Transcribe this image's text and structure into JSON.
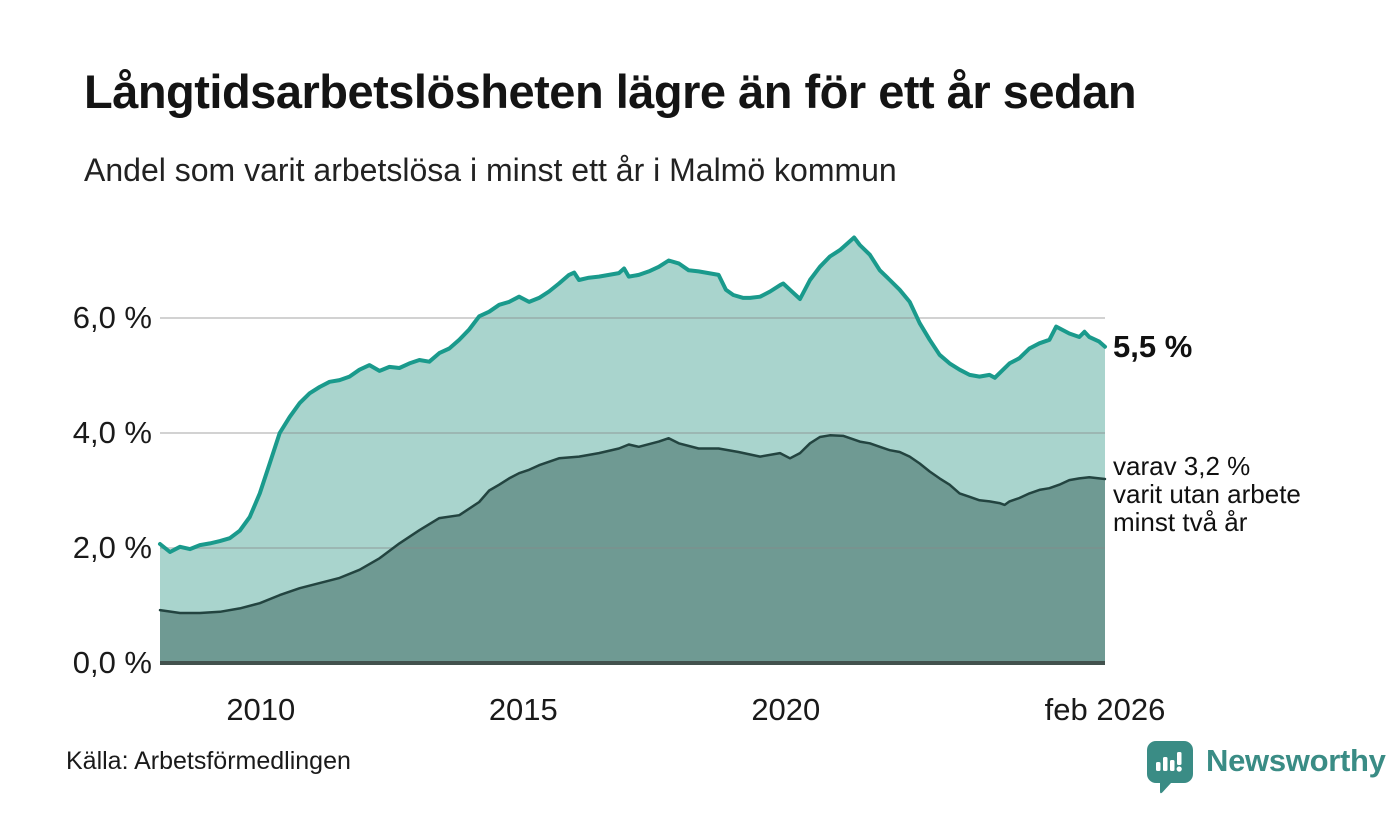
{
  "header": {
    "title": "Långtidsarbetslösheten lägre än för ett år sedan",
    "subtitle": "Andel som varit arbetslösa i minst ett år i Malmö kommun"
  },
  "chart_data": {
    "type": "area",
    "title": "Långtidsarbetslösheten lägre än för ett år sedan",
    "subtitle": "Andel som varit arbetslösa i minst ett år i Malmö kommun",
    "xlabel": "",
    "ylabel": "",
    "x_unit": "year (decimal, feb 2008 – feb 2026)",
    "y_unit": "percent",
    "x_range": [
      2008.08,
      2026.08
    ],
    "y_range": [
      0,
      7.53
    ],
    "grid": true,
    "legend_position": "none",
    "y_ticks": [
      {
        "label": "0,0 %",
        "value": 0
      },
      {
        "label": "2,0 %",
        "value": 2
      },
      {
        "label": "4,0 %",
        "value": 4
      },
      {
        "label": "6,0 %",
        "value": 6
      }
    ],
    "x_ticks": [
      {
        "label": "2010",
        "value": 2010
      },
      {
        "label": "2015",
        "value": 2015
      },
      {
        "label": "2020",
        "value": 2020
      },
      {
        "label": "feb 2026",
        "value": 2026.08
      }
    ],
    "series": [
      {
        "id": "unemployed-at-least-one-year",
        "latest_label": "5,5 %",
        "latest_value": 5.5,
        "line_color": "#1a9a8c",
        "fill_color": "#a9d4cd",
        "line_width": 4,
        "points": [
          [
            2008.08,
            2.07
          ],
          [
            2008.27,
            1.93
          ],
          [
            2008.46,
            2.02
          ],
          [
            2008.65,
            1.98
          ],
          [
            2008.84,
            2.05
          ],
          [
            2009.03,
            2.08
          ],
          [
            2009.22,
            2.12
          ],
          [
            2009.41,
            2.17
          ],
          [
            2009.6,
            2.3
          ],
          [
            2009.79,
            2.54
          ],
          [
            2009.98,
            2.95
          ],
          [
            2010.17,
            3.47
          ],
          [
            2010.36,
            4.0
          ],
          [
            2010.55,
            4.28
          ],
          [
            2010.74,
            4.52
          ],
          [
            2010.93,
            4.69
          ],
          [
            2011.12,
            4.8
          ],
          [
            2011.31,
            4.89
          ],
          [
            2011.5,
            4.92
          ],
          [
            2011.69,
            4.98
          ],
          [
            2011.88,
            5.1
          ],
          [
            2012.07,
            5.18
          ],
          [
            2012.26,
            5.08
          ],
          [
            2012.45,
            5.15
          ],
          [
            2012.64,
            5.13
          ],
          [
            2012.83,
            5.21
          ],
          [
            2013.02,
            5.27
          ],
          [
            2013.21,
            5.24
          ],
          [
            2013.4,
            5.39
          ],
          [
            2013.59,
            5.47
          ],
          [
            2013.78,
            5.62
          ],
          [
            2013.97,
            5.8
          ],
          [
            2014.16,
            6.03
          ],
          [
            2014.35,
            6.11
          ],
          [
            2014.54,
            6.23
          ],
          [
            2014.73,
            6.28
          ],
          [
            2014.92,
            6.37
          ],
          [
            2015.11,
            6.28
          ],
          [
            2015.3,
            6.35
          ],
          [
            2015.49,
            6.46
          ],
          [
            2015.68,
            6.6
          ],
          [
            2015.87,
            6.75
          ],
          [
            2015.97,
            6.79
          ],
          [
            2016.06,
            6.66
          ],
          [
            2016.25,
            6.7
          ],
          [
            2016.44,
            6.72
          ],
          [
            2016.63,
            6.75
          ],
          [
            2016.82,
            6.78
          ],
          [
            2016.92,
            6.86
          ],
          [
            2017.01,
            6.72
          ],
          [
            2017.2,
            6.75
          ],
          [
            2017.39,
            6.81
          ],
          [
            2017.58,
            6.89
          ],
          [
            2017.77,
            7.0
          ],
          [
            2017.96,
            6.95
          ],
          [
            2018.15,
            6.83
          ],
          [
            2018.34,
            6.81
          ],
          [
            2018.53,
            6.78
          ],
          [
            2018.72,
            6.75
          ],
          [
            2018.86,
            6.49
          ],
          [
            2019.0,
            6.4
          ],
          [
            2019.19,
            6.35
          ],
          [
            2019.32,
            6.35
          ],
          [
            2019.51,
            6.37
          ],
          [
            2019.7,
            6.46
          ],
          [
            2019.89,
            6.57
          ],
          [
            2019.95,
            6.6
          ],
          [
            2020.08,
            6.49
          ],
          [
            2020.27,
            6.33
          ],
          [
            2020.46,
            6.66
          ],
          [
            2020.65,
            6.89
          ],
          [
            2020.84,
            7.07
          ],
          [
            2021.03,
            7.18
          ],
          [
            2021.3,
            7.4
          ],
          [
            2021.41,
            7.27
          ],
          [
            2021.6,
            7.1
          ],
          [
            2021.79,
            6.83
          ],
          [
            2021.98,
            6.66
          ],
          [
            2022.17,
            6.49
          ],
          [
            2022.36,
            6.28
          ],
          [
            2022.55,
            5.91
          ],
          [
            2022.74,
            5.62
          ],
          [
            2022.93,
            5.36
          ],
          [
            2023.12,
            5.21
          ],
          [
            2023.31,
            5.1
          ],
          [
            2023.5,
            5.01
          ],
          [
            2023.69,
            4.98
          ],
          [
            2023.88,
            5.01
          ],
          [
            2023.98,
            4.96
          ],
          [
            2024.07,
            5.04
          ],
          [
            2024.26,
            5.21
          ],
          [
            2024.45,
            5.3
          ],
          [
            2024.64,
            5.47
          ],
          [
            2024.83,
            5.56
          ],
          [
            2025.02,
            5.62
          ],
          [
            2025.15,
            5.85
          ],
          [
            2025.21,
            5.82
          ],
          [
            2025.4,
            5.73
          ],
          [
            2025.59,
            5.67
          ],
          [
            2025.69,
            5.76
          ],
          [
            2025.78,
            5.67
          ],
          [
            2025.97,
            5.59
          ],
          [
            2026.08,
            5.5
          ]
        ]
      },
      {
        "id": "unemployed-at-least-two-years",
        "latest_label": "varav 3,2 % varit utan arbete minst två år",
        "latest_value": 3.2,
        "line_color": "#234440",
        "fill_color": "#6f9a93",
        "line_width": 2.5,
        "points": [
          [
            2008.08,
            0.92
          ],
          [
            2008.46,
            0.87
          ],
          [
            2008.84,
            0.87
          ],
          [
            2009.22,
            0.89
          ],
          [
            2009.6,
            0.95
          ],
          [
            2009.98,
            1.04
          ],
          [
            2010.36,
            1.18
          ],
          [
            2010.74,
            1.3
          ],
          [
            2011.12,
            1.39
          ],
          [
            2011.5,
            1.48
          ],
          [
            2011.88,
            1.62
          ],
          [
            2012.26,
            1.82
          ],
          [
            2012.64,
            2.08
          ],
          [
            2013.02,
            2.31
          ],
          [
            2013.4,
            2.52
          ],
          [
            2013.78,
            2.57
          ],
          [
            2014.16,
            2.8
          ],
          [
            2014.35,
            3.0
          ],
          [
            2014.54,
            3.1
          ],
          [
            2014.73,
            3.21
          ],
          [
            2014.92,
            3.3
          ],
          [
            2015.11,
            3.36
          ],
          [
            2015.3,
            3.44
          ],
          [
            2015.68,
            3.56
          ],
          [
            2016.06,
            3.59
          ],
          [
            2016.44,
            3.65
          ],
          [
            2016.82,
            3.73
          ],
          [
            2017.01,
            3.8
          ],
          [
            2017.2,
            3.76
          ],
          [
            2017.58,
            3.85
          ],
          [
            2017.77,
            3.91
          ],
          [
            2017.96,
            3.82
          ],
          [
            2018.34,
            3.73
          ],
          [
            2018.72,
            3.73
          ],
          [
            2019.1,
            3.67
          ],
          [
            2019.51,
            3.59
          ],
          [
            2019.89,
            3.65
          ],
          [
            2020.08,
            3.56
          ],
          [
            2020.27,
            3.65
          ],
          [
            2020.46,
            3.82
          ],
          [
            2020.65,
            3.93
          ],
          [
            2020.84,
            3.96
          ],
          [
            2021.1,
            3.95
          ],
          [
            2021.41,
            3.85
          ],
          [
            2021.6,
            3.82
          ],
          [
            2021.79,
            3.76
          ],
          [
            2021.98,
            3.7
          ],
          [
            2022.17,
            3.67
          ],
          [
            2022.36,
            3.59
          ],
          [
            2022.55,
            3.47
          ],
          [
            2022.74,
            3.33
          ],
          [
            2022.93,
            3.21
          ],
          [
            2023.12,
            3.1
          ],
          [
            2023.31,
            2.95
          ],
          [
            2023.5,
            2.89
          ],
          [
            2023.69,
            2.83
          ],
          [
            2023.88,
            2.81
          ],
          [
            2024.07,
            2.78
          ],
          [
            2024.17,
            2.75
          ],
          [
            2024.26,
            2.81
          ],
          [
            2024.45,
            2.87
          ],
          [
            2024.64,
            2.95
          ],
          [
            2024.83,
            3.01
          ],
          [
            2025.02,
            3.04
          ],
          [
            2025.21,
            3.1
          ],
          [
            2025.4,
            3.18
          ],
          [
            2025.59,
            3.21
          ],
          [
            2025.78,
            3.23
          ],
          [
            2025.97,
            3.21
          ],
          [
            2026.08,
            3.2
          ]
        ]
      }
    ],
    "annotations": [
      {
        "text": "5,5 %",
        "bold": true,
        "series_index": 0,
        "value": 5.5
      },
      {
        "text": "varav 3,2 %\nvarit utan arbete\nminst två år",
        "bold": false,
        "series_index": 1,
        "value": 3.2
      }
    ],
    "gridline_color": "#d9d9d9",
    "baseline_color": "#42514d"
  },
  "footer": {
    "source": "Källa: Arbetsförmedlingen",
    "brand": "Newsworthy",
    "brand_color": "#3a8c85"
  }
}
